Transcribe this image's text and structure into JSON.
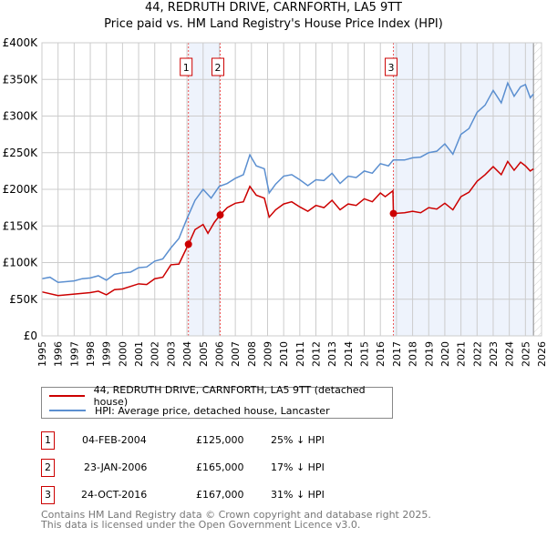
{
  "chart_data": {
    "type": "line",
    "title": "44, REDRUTH DRIVE, CARNFORTH, LA5 9TT",
    "subtitle": "Price paid vs. HM Land Registry's House Price Index (HPI)",
    "xlim": [
      1995,
      2026
    ],
    "ylim": [
      0,
      400000
    ],
    "y_ticks": [
      {
        "v": 0,
        "label": "£0"
      },
      {
        "v": 50000,
        "label": "£50K"
      },
      {
        "v": 100000,
        "label": "£100K"
      },
      {
        "v": 150000,
        "label": "£150K"
      },
      {
        "v": 200000,
        "label": "£200K"
      },
      {
        "v": 250000,
        "label": "£250K"
      },
      {
        "v": 300000,
        "label": "£300K"
      },
      {
        "v": 350000,
        "label": "£350K"
      },
      {
        "v": 400000,
        "label": "£400K"
      }
    ],
    "x_ticks": [
      "1995",
      "1996",
      "1997",
      "1998",
      "1999",
      "2000",
      "2001",
      "2002",
      "2003",
      "2004",
      "2005",
      "2006",
      "2007",
      "2008",
      "2009",
      "2010",
      "2011",
      "2012",
      "2013",
      "2014",
      "2015",
      "2016",
      "2017",
      "2018",
      "2019",
      "2020",
      "2021",
      "2022",
      "2023",
      "2024",
      "2025",
      "2026"
    ],
    "grid": true,
    "shaded_ranges": [
      [
        2004.09,
        2006.06
      ],
      [
        2016.81,
        2025.5
      ]
    ],
    "forecast_hatch_from": 2025.5,
    "series": [
      {
        "name": "44, REDRUTH DRIVE, CARNFORTH, LA5 9TT (detached house)",
        "color": "#cc0000",
        "x": [
          1995,
          1996,
          1997,
          1998,
          1998.5,
          1999,
          1999.5,
          2000,
          2001,
          2001.5,
          2002,
          2002.5,
          2003,
          2003.5,
          2004.09,
          2004.5,
          2005,
          2005.3,
          2005.7,
          2006.06,
          2006.5,
          2007,
          2007.5,
          2007.9,
          2008.3,
          2008.8,
          2009.1,
          2009.5,
          2010,
          2010.5,
          2011,
          2011.5,
          2012,
          2012.5,
          2013,
          2013.5,
          2014,
          2014.5,
          2015,
          2015.5,
          2016,
          2016.3,
          2016.78,
          2016.81,
          2017.5,
          2018,
          2018.5,
          2019,
          2019.5,
          2020,
          2020.5,
          2021,
          2021.5,
          2022,
          2022.5,
          2023,
          2023.5,
          2023.9,
          2024.3,
          2024.7,
          2025,
          2025.3,
          2025.5
        ],
        "y": [
          60000,
          55000,
          57000,
          59000,
          61000,
          56000,
          63000,
          64000,
          71000,
          70000,
          78000,
          80000,
          97000,
          98000,
          125000,
          145000,
          152000,
          140000,
          155000,
          165000,
          175000,
          181000,
          183000,
          204000,
          192000,
          188000,
          162000,
          172000,
          180000,
          183000,
          176000,
          170000,
          178000,
          175000,
          185000,
          172000,
          180000,
          178000,
          187000,
          183000,
          195000,
          190000,
          198000,
          167000,
          168000,
          170000,
          168000,
          175000,
          173000,
          181000,
          172000,
          190000,
          196000,
          211000,
          220000,
          231000,
          220000,
          238000,
          226000,
          237000,
          232000,
          225000,
          228000
        ]
      },
      {
        "name": "HPI: Average price, detached house, Lancaster",
        "color": "#5b8fd0",
        "x": [
          1995,
          1995.5,
          1996,
          1997,
          1997.5,
          1998,
          1998.5,
          1999,
          1999.5,
          2000,
          2000.5,
          2001,
          2001.5,
          2002,
          2002.5,
          2003,
          2003.5,
          2004,
          2004.5,
          2005,
          2005.5,
          2006,
          2006.5,
          2007,
          2007.5,
          2007.9,
          2008.3,
          2008.8,
          2009.1,
          2009.5,
          2010,
          2010.5,
          2011,
          2011.5,
          2012,
          2012.5,
          2013,
          2013.5,
          2014,
          2014.5,
          2015,
          2015.5,
          2016,
          2016.5,
          2016.8,
          2017.5,
          2018,
          2018.5,
          2019,
          2019.5,
          2020,
          2020.5,
          2021,
          2021.5,
          2022,
          2022.5,
          2023,
          2023.5,
          2023.9,
          2024.3,
          2024.7,
          2025,
          2025.3,
          2025.5
        ],
        "y": [
          78000,
          80000,
          73000,
          75000,
          78000,
          79000,
          82000,
          76000,
          84000,
          86000,
          87000,
          93000,
          94000,
          102000,
          105000,
          120000,
          133000,
          160000,
          185000,
          200000,
          188000,
          204000,
          208000,
          215000,
          220000,
          247000,
          232000,
          228000,
          195000,
          207000,
          218000,
          220000,
          213000,
          205000,
          213000,
          212000,
          222000,
          208000,
          218000,
          216000,
          225000,
          222000,
          235000,
          232000,
          240000,
          240000,
          243000,
          244000,
          250000,
          252000,
          262000,
          248000,
          275000,
          283000,
          305000,
          315000,
          335000,
          318000,
          345000,
          327000,
          340000,
          343000,
          325000,
          330000
        ]
      }
    ],
    "sales": [
      {
        "n": "1",
        "date": "04-FEB-2004",
        "x": 2004.09,
        "price": "£125,000",
        "value": 125000,
        "hpi": "25% ↓ HPI"
      },
      {
        "n": "2",
        "date": "23-JAN-2006",
        "x": 2006.06,
        "price": "£165,000",
        "value": 165000,
        "hpi": "17% ↓ HPI"
      },
      {
        "n": "3",
        "date": "24-OCT-2016",
        "x": 2016.81,
        "price": "£167,000",
        "value": 167000,
        "hpi": "31% ↓ HPI"
      }
    ]
  },
  "footer": {
    "line1": "Contains HM Land Registry data © Crown copyright and database right 2025.",
    "line2": "This data is licensed under the Open Government Licence v3.0."
  }
}
